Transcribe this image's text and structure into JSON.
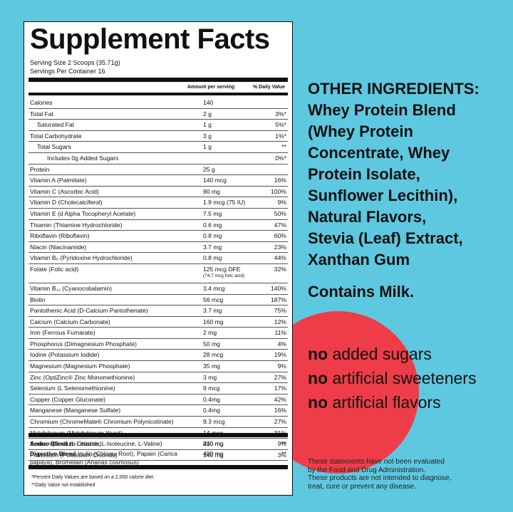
{
  "facts": {
    "title": "Supplement Facts",
    "serving_size": "Serving Size 2 Scoops (35.71g)",
    "servings_per_container": "Servings Per Container 16",
    "col_amount": "Amount per serving",
    "col_dv": "% Daily Value",
    "rows": [
      {
        "name": "Calories",
        "amount": "140",
        "dv": "",
        "indent": 0
      },
      {
        "name": "Total Fat",
        "amount": "2 g",
        "dv": "3%*",
        "indent": 0
      },
      {
        "name": "Saturated Fat",
        "amount": "1 g",
        "dv": "5%*",
        "indent": 1
      },
      {
        "name": "Total Carbohydrate",
        "amount": "3 g",
        "dv": "1%*",
        "indent": 0
      },
      {
        "name": "Total Sugars",
        "amount": "1 g",
        "dv": "**",
        "indent": 1
      },
      {
        "name": "Includes 0g Added Sugars",
        "amount": "",
        "dv": "0%*",
        "indent": 2
      },
      {
        "name": "Protein",
        "amount": "25 g",
        "dv": "",
        "indent": 0
      },
      {
        "name": "Vitamin A (Palmitate)",
        "amount": "140 mcg",
        "dv": "16%",
        "indent": 0
      },
      {
        "name": "Vitamin C (Ascorbic Acid)",
        "amount": "90 mg",
        "dv": "100%",
        "indent": 0
      },
      {
        "name": "Vitamin D (Cholecalciferol)",
        "amount": "1.9 mcg (75 IU)",
        "dv": "9%",
        "indent": 0
      },
      {
        "name": "Vitamin E (d Alpha Tocopheryl Acetate)",
        "amount": "7.5 mg",
        "dv": "50%",
        "indent": 0
      },
      {
        "name": "Thiamin (Thiamine Hydrochloride)",
        "amount": "0.6 mg",
        "dv": "47%",
        "indent": 0
      },
      {
        "name": "Riboflavin (Riboflavin)",
        "amount": "0.8 mg",
        "dv": "60%",
        "indent": 0
      },
      {
        "name": "Niacin (Niacinamide)",
        "amount": "3.7 mg",
        "dv": "23%",
        "indent": 0
      },
      {
        "name": "Vitamin B₆ (Pyridoxine Hydrochloride)",
        "amount": "0.8 mg",
        "dv": "44%",
        "indent": 0
      },
      {
        "name": "Folate (Folic acid)",
        "amount": "125 mcg DFE",
        "amount2": "(74.7 mcg folic acid)",
        "dv": "32%",
        "indent": 0
      },
      {
        "name": "Vitamin B₁₂ (Cyanocobalamin)",
        "amount": "3.4 mcg",
        "dv": "140%",
        "indent": 0
      },
      {
        "name": "Biotin",
        "amount": "56 mcg",
        "dv": "187%",
        "indent": 0
      },
      {
        "name": "Pantothenic Acid (D-Calcium Pantothenate)",
        "amount": "3.7 mg",
        "dv": "75%",
        "indent": 0
      },
      {
        "name": "Calcium (Calcium Carbonate)",
        "amount": "160 mg",
        "dv": "12%",
        "indent": 0
      },
      {
        "name": "Iron (Ferrous Fumarate)",
        "amount": "2 mg",
        "dv": "11%",
        "indent": 0
      },
      {
        "name": "Phosphorus (Dimagnesium Phosphate)",
        "amount": "50 mg",
        "dv": "4%",
        "indent": 0
      },
      {
        "name": "Iodine (Potassium Iodide)",
        "amount": "28 mcg",
        "dv": "19%",
        "indent": 0
      },
      {
        "name": "Magnesium (Magnesium Phosphate)",
        "amount": "35 mg",
        "dv": "9%",
        "indent": 0
      },
      {
        "name": "Zinc (OptiZinc® Zinc Monomethionine)",
        "amount": "3 mg",
        "dv": "27%",
        "indent": 0
      },
      {
        "name": "Selenium (L Selenomethionine)",
        "amount": "9 mcg",
        "dv": "17%",
        "indent": 0
      },
      {
        "name": "Copper (Copper Gluconate)",
        "amount": "0.4mg",
        "dv": "42%",
        "indent": 0
      },
      {
        "name": "Manganese (Manganese Sulfate)",
        "amount": "0.4mg",
        "dv": "16%",
        "indent": 0
      },
      {
        "name": "Chromium (ChromeMate® Chromium Polynicotinate)",
        "amount": "9.3 mcg",
        "dv": "27%",
        "indent": 0
      },
      {
        "name": "Molybdenum (Molybdenum Yeast)",
        "amount": "14 mcg",
        "dv": "31%",
        "indent": 0
      },
      {
        "name": "Sodium (Sodium Chloride)",
        "amount": "210 mg",
        "dv": "9%",
        "indent": 0
      },
      {
        "name": "Potassium (Potassium Chloride)",
        "amount": "140 mg",
        "dv": "3%",
        "indent": 0
      }
    ],
    "blends": [
      {
        "name": "Amino Blend",
        "detail": " (L-Leucine, L-Isoleucine, L-Valine)",
        "amount": "400 mg",
        "dv": "**"
      },
      {
        "name": "Digestive Blend",
        "detail": " Inulin (Chicory Root), Papain (Carica papaya), Bromelain (Ananas cosmosus)",
        "amount": "400 mg",
        "dv": "**"
      }
    ],
    "footnote1": "*Percent Daily Values are based on a 2,000 calorie diet.",
    "footnote2": "**Daily Value not established"
  },
  "ingredients": {
    "lines": [
      "OTHER INGREDIENTS:",
      "Whey Protein Blend",
      "(Whey Protein",
      "Concentrate, Whey",
      "Protein Isolate,",
      "Sunflower Lecithin),",
      "Natural Flavors,",
      "Stevia (Leaf) Extract,",
      "Xanthan Gum"
    ],
    "contains": "Contains Milk."
  },
  "claims": [
    {
      "bold": "no",
      "rest": " added sugars"
    },
    {
      "bold": "no",
      "rest": " artificial sweeteners"
    },
    {
      "bold": "no",
      "rest": " artificial flavors"
    }
  ],
  "disclaimer": [
    "These statements have not been evaluated",
    "by the Food and Drug Administration.",
    "These products are not intended to diagnose,",
    "treat, cure or prevent any disease."
  ],
  "colors": {
    "background": "#5dc8df",
    "circle": "#ee3d48",
    "text": "#111111"
  }
}
